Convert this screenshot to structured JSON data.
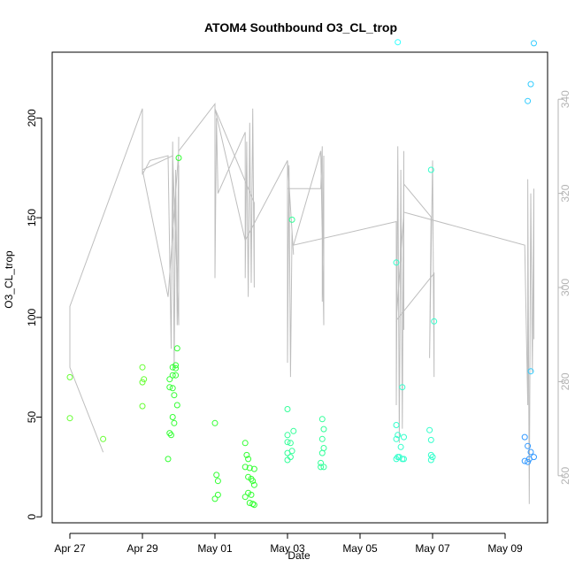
{
  "chart_data": {
    "type": "scatter",
    "title": "ATOM4 Southbound O3_CL_trop",
    "xlabel": "Date",
    "ylabel": "O3_CL_trop",
    "x_ticks": [
      "Apr 27",
      "Apr 29",
      "May 01",
      "May 03",
      "May 05",
      "May 07",
      "May 09"
    ],
    "y_ticks": [
      0,
      50,
      100,
      150,
      200
    ],
    "y_right_ticks": [
      260,
      280,
      300,
      320,
      340
    ],
    "xlim": [
      "2018-04-26 12:00",
      "2018-05-10 05:00"
    ],
    "ylim": [
      -3,
      233
    ],
    "y_right_lim": [
      250,
      350
    ],
    "grid": false,
    "point_colors": {
      "green": "#33ff33",
      "green_alt": "#66ff33",
      "spring": "#33ff99",
      "aqua": "#33ffcc",
      "cyan": "#33ffff",
      "sky": "#33ccff",
      "blue": "#3399ff"
    },
    "line_color": "#bebebe",
    "axis_color": "#000000",
    "right_axis_color": "#b3b3b3",
    "series": [
      {
        "type": "points",
        "points": [
          {
            "x": "2018-04-27 00:00",
            "y": 70,
            "c": "green_alt"
          },
          {
            "x": "2018-04-27 00:00",
            "y": 49.5,
            "c": "green_alt"
          },
          {
            "x": "2018-04-27 22:00",
            "y": 39,
            "c": "green_alt"
          },
          {
            "x": "2018-04-29 00:00",
            "y": 75,
            "c": "green_alt"
          },
          {
            "x": "2018-04-29 01:00",
            "y": 69,
            "c": "green_alt"
          },
          {
            "x": "2018-04-29 00:00",
            "y": 67.5,
            "c": "green_alt"
          },
          {
            "x": "2018-04-29 00:00",
            "y": 55.5,
            "c": "green_alt"
          },
          {
            "x": "2018-04-29 18:00",
            "y": 69,
            "c": "green"
          },
          {
            "x": "2018-04-29 20:00",
            "y": 75,
            "c": "green"
          },
          {
            "x": "2018-04-29 20:00",
            "y": 71,
            "c": "green"
          },
          {
            "x": "2018-04-29 18:00",
            "y": 65,
            "c": "green"
          },
          {
            "x": "2018-04-29 20:00",
            "y": 64.5,
            "c": "green"
          },
          {
            "x": "2018-04-29 21:00",
            "y": 61,
            "c": "green"
          },
          {
            "x": "2018-04-29 22:00",
            "y": 76,
            "c": "green"
          },
          {
            "x": "2018-04-29 22:00",
            "y": 74.5,
            "c": "green"
          },
          {
            "x": "2018-04-29 22:00",
            "y": 71,
            "c": "green"
          },
          {
            "x": "2018-04-29 23:00",
            "y": 56,
            "c": "green"
          },
          {
            "x": "2018-04-29 20:00",
            "y": 50,
            "c": "green"
          },
          {
            "x": "2018-04-29 21:00",
            "y": 47,
            "c": "green"
          },
          {
            "x": "2018-04-29 18:00",
            "y": 42,
            "c": "green"
          },
          {
            "x": "2018-04-29 19:00",
            "y": 41,
            "c": "green"
          },
          {
            "x": "2018-04-29 17:00",
            "y": 29,
            "c": "green"
          },
          {
            "x": "2018-04-29 23:00",
            "y": 84.5,
            "c": "green"
          },
          {
            "x": "2018-04-30 00:00",
            "y": 180,
            "c": "green"
          },
          {
            "x": "2018-05-01 00:00",
            "y": 47,
            "c": "green"
          },
          {
            "x": "2018-05-01 01:00",
            "y": 21,
            "c": "green"
          },
          {
            "x": "2018-05-01 02:00",
            "y": 18,
            "c": "green"
          },
          {
            "x": "2018-05-01 02:00",
            "y": 11,
            "c": "green"
          },
          {
            "x": "2018-05-01 00:00",
            "y": 9,
            "c": "green"
          },
          {
            "x": "2018-05-01 20:00",
            "y": 37,
            "c": "green"
          },
          {
            "x": "2018-05-01 21:00",
            "y": 31,
            "c": "green"
          },
          {
            "x": "2018-05-01 22:00",
            "y": 29,
            "c": "green"
          },
          {
            "x": "2018-05-01 20:00",
            "y": 25,
            "c": "green"
          },
          {
            "x": "2018-05-01 23:00",
            "y": 24.5,
            "c": "green"
          },
          {
            "x": "2018-05-02 02:00",
            "y": 24,
            "c": "green"
          },
          {
            "x": "2018-05-01 22:00",
            "y": 20,
            "c": "green"
          },
          {
            "x": "2018-05-02 00:00",
            "y": 19,
            "c": "green"
          },
          {
            "x": "2018-05-02 01:00",
            "y": 18,
            "c": "green"
          },
          {
            "x": "2018-05-02 02:00",
            "y": 16,
            "c": "green"
          },
          {
            "x": "2018-05-01 22:00",
            "y": 12,
            "c": "green"
          },
          {
            "x": "2018-05-02 00:00",
            "y": 11,
            "c": "green"
          },
          {
            "x": "2018-05-01 20:00",
            "y": 10,
            "c": "green"
          },
          {
            "x": "2018-05-01 23:00",
            "y": 7,
            "c": "green"
          },
          {
            "x": "2018-05-02 01:00",
            "y": 6.5,
            "c": "green"
          },
          {
            "x": "2018-05-02 02:00",
            "y": 6,
            "c": "green"
          },
          {
            "x": "2018-05-03 00:00",
            "y": 54,
            "c": "spring"
          },
          {
            "x": "2018-05-03 04:00",
            "y": 43,
            "c": "spring"
          },
          {
            "x": "2018-05-03 00:00",
            "y": 41,
            "c": "spring"
          },
          {
            "x": "2018-05-03 00:00",
            "y": 37.5,
            "c": "spring"
          },
          {
            "x": "2018-05-03 02:00",
            "y": 37,
            "c": "spring"
          },
          {
            "x": "2018-05-03 03:00",
            "y": 33,
            "c": "spring"
          },
          {
            "x": "2018-05-03 00:00",
            "y": 32,
            "c": "spring"
          },
          {
            "x": "2018-05-03 02:00",
            "y": 30,
            "c": "spring"
          },
          {
            "x": "2018-05-03 00:00",
            "y": 28.5,
            "c": "spring"
          },
          {
            "x": "2018-05-03 03:00",
            "y": 149,
            "c": "spring"
          },
          {
            "x": "2018-05-03 23:00",
            "y": 49,
            "c": "spring"
          },
          {
            "x": "2018-05-04 00:00",
            "y": 44,
            "c": "spring"
          },
          {
            "x": "2018-05-03 23:00",
            "y": 39,
            "c": "spring"
          },
          {
            "x": "2018-05-04 00:00",
            "y": 34.5,
            "c": "spring"
          },
          {
            "x": "2018-05-03 23:00",
            "y": 32,
            "c": "spring"
          },
          {
            "x": "2018-05-03 22:00",
            "y": 27,
            "c": "spring"
          },
          {
            "x": "2018-05-03 22:00",
            "y": 25,
            "c": "spring"
          },
          {
            "x": "2018-05-04 00:00",
            "y": 25,
            "c": "spring"
          },
          {
            "x": "2018-05-06 00:00",
            "y": 46,
            "c": "aqua"
          },
          {
            "x": "2018-05-06 01:00",
            "y": 41,
            "c": "aqua"
          },
          {
            "x": "2018-05-06 00:00",
            "y": 39,
            "c": "aqua"
          },
          {
            "x": "2018-05-06 05:00",
            "y": 40,
            "c": "aqua"
          },
          {
            "x": "2018-05-06 03:00",
            "y": 35,
            "c": "aqua"
          },
          {
            "x": "2018-05-06 00:00",
            "y": 29,
            "c": "aqua"
          },
          {
            "x": "2018-05-06 01:00",
            "y": 30,
            "c": "aqua"
          },
          {
            "x": "2018-05-06 02:00",
            "y": 30,
            "c": "aqua"
          },
          {
            "x": "2018-05-06 04:00",
            "y": 29,
            "c": "aqua"
          },
          {
            "x": "2018-05-06 05:00",
            "y": 29,
            "c": "aqua"
          },
          {
            "x": "2018-05-06 00:00",
            "y": 127.5,
            "c": "aqua"
          },
          {
            "x": "2018-05-06 04:00",
            "y": 65,
            "c": "aqua"
          },
          {
            "x": "2018-05-06 01:00",
            "y": 238,
            "c": "cyan"
          },
          {
            "x": "2018-05-06 22:00",
            "y": 43.5,
            "c": "aqua"
          },
          {
            "x": "2018-05-06 23:00",
            "y": 38.5,
            "c": "aqua"
          },
          {
            "x": "2018-05-06 23:00",
            "y": 31,
            "c": "aqua"
          },
          {
            "x": "2018-05-07 00:00",
            "y": 30,
            "c": "aqua"
          },
          {
            "x": "2018-05-06 23:00",
            "y": 28.5,
            "c": "aqua"
          },
          {
            "x": "2018-05-06 23:00",
            "y": 174,
            "c": "aqua"
          },
          {
            "x": "2018-05-07 01:00",
            "y": 98,
            "c": "aqua"
          },
          {
            "x": "2018-05-09 13:00",
            "y": 40,
            "c": "blue"
          },
          {
            "x": "2018-05-09 15:00",
            "y": 35.5,
            "c": "blue"
          },
          {
            "x": "2018-05-09 17:00",
            "y": 32.5,
            "c": "blue"
          },
          {
            "x": "2018-05-09 19:00",
            "y": 30,
            "c": "blue"
          },
          {
            "x": "2018-05-09 16:00",
            "y": 29,
            "c": "blue"
          },
          {
            "x": "2018-05-09 13:00",
            "y": 28,
            "c": "blue"
          },
          {
            "x": "2018-05-09 15:00",
            "y": 27.5,
            "c": "blue"
          },
          {
            "x": "2018-05-09 17:00",
            "y": 73,
            "c": "sky"
          },
          {
            "x": "2018-05-09 15:00",
            "y": 208.5,
            "c": "sky"
          },
          {
            "x": "2018-05-09 17:00",
            "y": 217,
            "c": "sky"
          },
          {
            "x": "2018-05-09 19:00",
            "y": 237.5,
            "c": "sky"
          }
        ]
      },
      {
        "type": "line",
        "axis": "right",
        "points": [
          {
            "x": "2018-04-27 00:00",
            "y": 296
          },
          {
            "x": "2018-04-27 00:00",
            "y": 283
          },
          {
            "x": "2018-04-27 22:00",
            "y": 265
          },
          {
            "x": "2018-04-27 00:00",
            "y": 283
          },
          {
            "x": "2018-04-27 00:00",
            "y": 296
          },
          {
            "x": "2018-04-29 00:00",
            "y": 338
          },
          {
            "x": "2018-04-29 00:00",
            "y": 324
          },
          {
            "x": "2018-04-29 05:00",
            "y": 327
          },
          {
            "x": "2018-04-29 17:00",
            "y": 328
          },
          {
            "x": "2018-04-29 19:00",
            "y": 287
          },
          {
            "x": "2018-04-29 20:00",
            "y": 331
          },
          {
            "x": "2018-04-29 21:00",
            "y": 283
          },
          {
            "x": "2018-04-29 22:00",
            "y": 325
          },
          {
            "x": "2018-04-29 23:00",
            "y": 292
          },
          {
            "x": "2018-04-30 00:00",
            "y": 332
          },
          {
            "x": "2018-04-29 23:00",
            "y": 294
          },
          {
            "x": "2018-04-30 00:00",
            "y": 326
          },
          {
            "x": "2018-04-30 00:00",
            "y": 292
          },
          {
            "x": "2018-04-29 20:00",
            "y": 328
          },
          {
            "x": "2018-04-29 00:00",
            "y": 325
          },
          {
            "x": "2018-04-29 17:00",
            "y": 298
          },
          {
            "x": "2018-04-30 00:00",
            "y": 329
          },
          {
            "x": "2018-05-01 00:00",
            "y": 339
          },
          {
            "x": "2018-05-01 00:00",
            "y": 302
          },
          {
            "x": "2018-05-01 01:00",
            "y": 336
          },
          {
            "x": "2018-05-01 02:00",
            "y": 320
          },
          {
            "x": "2018-05-01 20:00",
            "y": 333
          },
          {
            "x": "2018-05-01 20:00",
            "y": 302
          },
          {
            "x": "2018-05-01 21:00",
            "y": 331
          },
          {
            "x": "2018-05-01 22:00",
            "y": 298
          },
          {
            "x": "2018-05-01 23:00",
            "y": 335
          },
          {
            "x": "2018-05-02 00:00",
            "y": 301
          },
          {
            "x": "2018-05-02 01:00",
            "y": 338
          },
          {
            "x": "2018-05-02 02:00",
            "y": 300
          },
          {
            "x": "2018-05-02 02:00",
            "y": 318
          },
          {
            "x": "2018-05-01 00:00",
            "y": 338
          },
          {
            "x": "2018-05-01 20:00",
            "y": 310
          },
          {
            "x": "2018-05-03 00:00",
            "y": 327
          },
          {
            "x": "2018-05-03 00:00",
            "y": 284
          },
          {
            "x": "2018-05-03 01:00",
            "y": 326
          },
          {
            "x": "2018-05-03 02:00",
            "y": 281
          },
          {
            "x": "2018-05-03 03:00",
            "y": 312
          },
          {
            "x": "2018-05-03 04:00",
            "y": 307
          },
          {
            "x": "2018-05-03 00:00",
            "y": 327
          },
          {
            "x": "2018-05-03 00:00",
            "y": 321
          },
          {
            "x": "2018-05-03 22:00",
            "y": 321
          },
          {
            "x": "2018-05-03 23:00",
            "y": 330
          },
          {
            "x": "2018-05-03 23:00",
            "y": 297
          },
          {
            "x": "2018-05-04 00:00",
            "y": 328
          },
          {
            "x": "2018-05-04 00:00",
            "y": 292
          },
          {
            "x": "2018-05-03 22:00",
            "y": 329
          },
          {
            "x": "2018-05-03 04:00",
            "y": 309
          },
          {
            "x": "2018-05-06 00:00",
            "y": 314
          },
          {
            "x": "2018-05-06 00:00",
            "y": 275
          },
          {
            "x": "2018-05-06 01:00",
            "y": 330
          },
          {
            "x": "2018-05-06 02:00",
            "y": 267
          },
          {
            "x": "2018-05-06 03:00",
            "y": 325
          },
          {
            "x": "2018-05-06 04:00",
            "y": 270
          },
          {
            "x": "2018-05-06 05:00",
            "y": 329
          },
          {
            "x": "2018-05-06 05:00",
            "y": 291
          },
          {
            "x": "2018-05-06 05:00",
            "y": 322
          },
          {
            "x": "2018-05-06 23:00",
            "y": 315
          },
          {
            "x": "2018-05-06 22:00",
            "y": 285
          },
          {
            "x": "2018-05-07 00:00",
            "y": 327
          },
          {
            "x": "2018-05-07 01:00",
            "y": 281
          },
          {
            "x": "2018-05-07 01:00",
            "y": 303
          },
          {
            "x": "2018-05-06 00:00",
            "y": 293
          },
          {
            "x": "2018-05-06 05:00",
            "y": 316
          },
          {
            "x": "2018-05-09 13:00",
            "y": 309
          },
          {
            "x": "2018-05-09 15:00",
            "y": 275
          },
          {
            "x": "2018-05-09 15:00",
            "y": 323
          },
          {
            "x": "2018-05-09 16:00",
            "y": 254
          },
          {
            "x": "2018-05-09 17:00",
            "y": 320
          },
          {
            "x": "2018-05-09 18:00",
            "y": 282
          },
          {
            "x": "2018-05-09 19:00",
            "y": 321
          },
          {
            "x": "2018-05-09 19:00",
            "y": 289
          }
        ]
      }
    ]
  }
}
